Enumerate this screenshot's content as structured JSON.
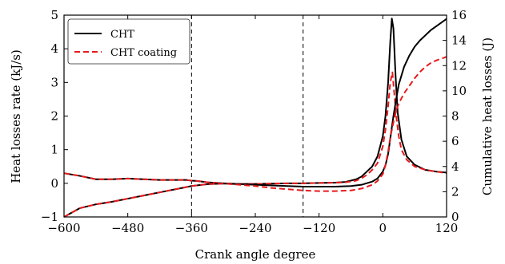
{
  "chart_data": {
    "type": "line",
    "xlabel": "Crank angle degree",
    "ylabel_left": "Heat losses rate (kJ/s)",
    "ylabel_right": "Cumulative heat losses (J)",
    "xlim": [
      -600,
      120
    ],
    "ylim_left": [
      -1,
      5
    ],
    "ylim_right": [
      0,
      16
    ],
    "xticks": [
      -600,
      -480,
      -360,
      -240,
      -120,
      0,
      120
    ],
    "xtick_labels": [
      "−600",
      "−480",
      "−360",
      "−240",
      "−120",
      "0",
      "120"
    ],
    "yticks_left": [
      -1,
      0,
      1,
      2,
      3,
      4,
      5
    ],
    "ytick_labels_left": [
      "−1",
      "0",
      "1",
      "2",
      "3",
      "4",
      "5"
    ],
    "yticks_right": [
      0,
      2,
      4,
      6,
      8,
      10,
      12,
      14,
      16
    ],
    "ytick_labels_right": [
      "0",
      "2",
      "4",
      "6",
      "8",
      "10",
      "12",
      "14",
      "16"
    ],
    "vlines": [
      -360,
      -150
    ],
    "legend_position": "top-left",
    "grid": false,
    "series": [
      {
        "name": "CHT",
        "color": "#000000",
        "style": "solid",
        "axis": "left",
        "x": [
          -600,
          -570,
          -540,
          -510,
          -480,
          -450,
          -420,
          -390,
          -370,
          -360,
          -350,
          -330,
          -300,
          -270,
          -240,
          -210,
          -180,
          -150,
          -120,
          -90,
          -70,
          -50,
          -40,
          -30,
          -20,
          -10,
          0,
          5,
          10,
          14,
          17,
          20,
          24,
          28,
          35,
          45,
          60,
          80,
          100,
          120
        ],
        "y": [
          0.3,
          0.22,
          0.12,
          0.12,
          0.14,
          0.12,
          0.1,
          0.1,
          0.1,
          0.08,
          0.07,
          0.03,
          0.0,
          -0.02,
          -0.02,
          -0.01,
          0.0,
          0.0,
          0.01,
          0.02,
          0.04,
          0.12,
          0.2,
          0.35,
          0.5,
          0.8,
          1.4,
          2.0,
          3.0,
          4.2,
          4.9,
          4.6,
          3.2,
          2.1,
          1.3,
          0.8,
          0.55,
          0.4,
          0.35,
          0.32
        ]
      },
      {
        "name": "CHT coating",
        "color": "#e8191c",
        "style": "dashed",
        "axis": "left",
        "x": [
          -600,
          -570,
          -540,
          -510,
          -480,
          -450,
          -420,
          -390,
          -370,
          -360,
          -350,
          -330,
          -300,
          -270,
          -240,
          -210,
          -180,
          -150,
          -120,
          -90,
          -70,
          -50,
          -40,
          -30,
          -20,
          -10,
          0,
          5,
          10,
          14,
          18,
          22,
          26,
          30,
          35,
          45,
          60,
          80,
          100,
          120
        ],
        "y": [
          0.3,
          0.22,
          0.12,
          0.12,
          0.14,
          0.12,
          0.1,
          0.1,
          0.1,
          0.08,
          0.07,
          0.03,
          0.0,
          -0.02,
          -0.02,
          -0.01,
          0.0,
          0.0,
          0.01,
          0.02,
          0.03,
          0.08,
          0.15,
          0.25,
          0.4,
          0.6,
          1.1,
          1.6,
          2.3,
          3.0,
          3.3,
          2.6,
          1.9,
          1.4,
          1.0,
          0.7,
          0.5,
          0.4,
          0.35,
          0.3
        ]
      },
      {
        "name": "",
        "color": "#000000",
        "style": "solid",
        "axis": "right",
        "x": [
          -600,
          -570,
          -540,
          -510,
          -480,
          -450,
          -420,
          -390,
          -360,
          -330,
          -300,
          -270,
          -240,
          -210,
          -180,
          -150,
          -120,
          -90,
          -60,
          -40,
          -20,
          -10,
          0,
          5,
          10,
          15,
          20,
          25,
          30,
          40,
          50,
          60,
          70,
          80,
          90,
          100,
          110,
          120
        ],
        "y": [
          0.0,
          0.7,
          1.0,
          1.2,
          1.45,
          1.7,
          1.95,
          2.2,
          2.45,
          2.6,
          2.65,
          2.6,
          2.55,
          2.5,
          2.45,
          2.4,
          2.4,
          2.4,
          2.45,
          2.55,
          2.8,
          3.05,
          3.6,
          4.1,
          5.0,
          6.5,
          8.0,
          9.3,
          10.5,
          11.9,
          12.8,
          13.5,
          14.0,
          14.4,
          14.8,
          15.1,
          15.4,
          15.7
        ]
      },
      {
        "name": "",
        "color": "#e8191c",
        "style": "dashed",
        "axis": "right",
        "x": [
          -600,
          -570,
          -540,
          -510,
          -480,
          -450,
          -420,
          -390,
          -360,
          -330,
          -300,
          -270,
          -240,
          -210,
          -180,
          -150,
          -120,
          -90,
          -60,
          -40,
          -20,
          -10,
          0,
          5,
          10,
          15,
          20,
          25,
          30,
          40,
          50,
          60,
          70,
          80,
          90,
          100,
          110,
          120
        ],
        "y": [
          0.0,
          0.7,
          1.0,
          1.2,
          1.45,
          1.7,
          1.95,
          2.2,
          2.45,
          2.6,
          2.65,
          2.55,
          2.45,
          2.3,
          2.2,
          2.1,
          2.05,
          2.05,
          2.1,
          2.25,
          2.55,
          2.85,
          3.4,
          4.1,
          5.2,
          6.5,
          7.5,
          8.4,
          9.0,
          9.8,
          10.4,
          11.0,
          11.5,
          11.9,
          12.2,
          12.4,
          12.55,
          12.7
        ]
      }
    ]
  }
}
